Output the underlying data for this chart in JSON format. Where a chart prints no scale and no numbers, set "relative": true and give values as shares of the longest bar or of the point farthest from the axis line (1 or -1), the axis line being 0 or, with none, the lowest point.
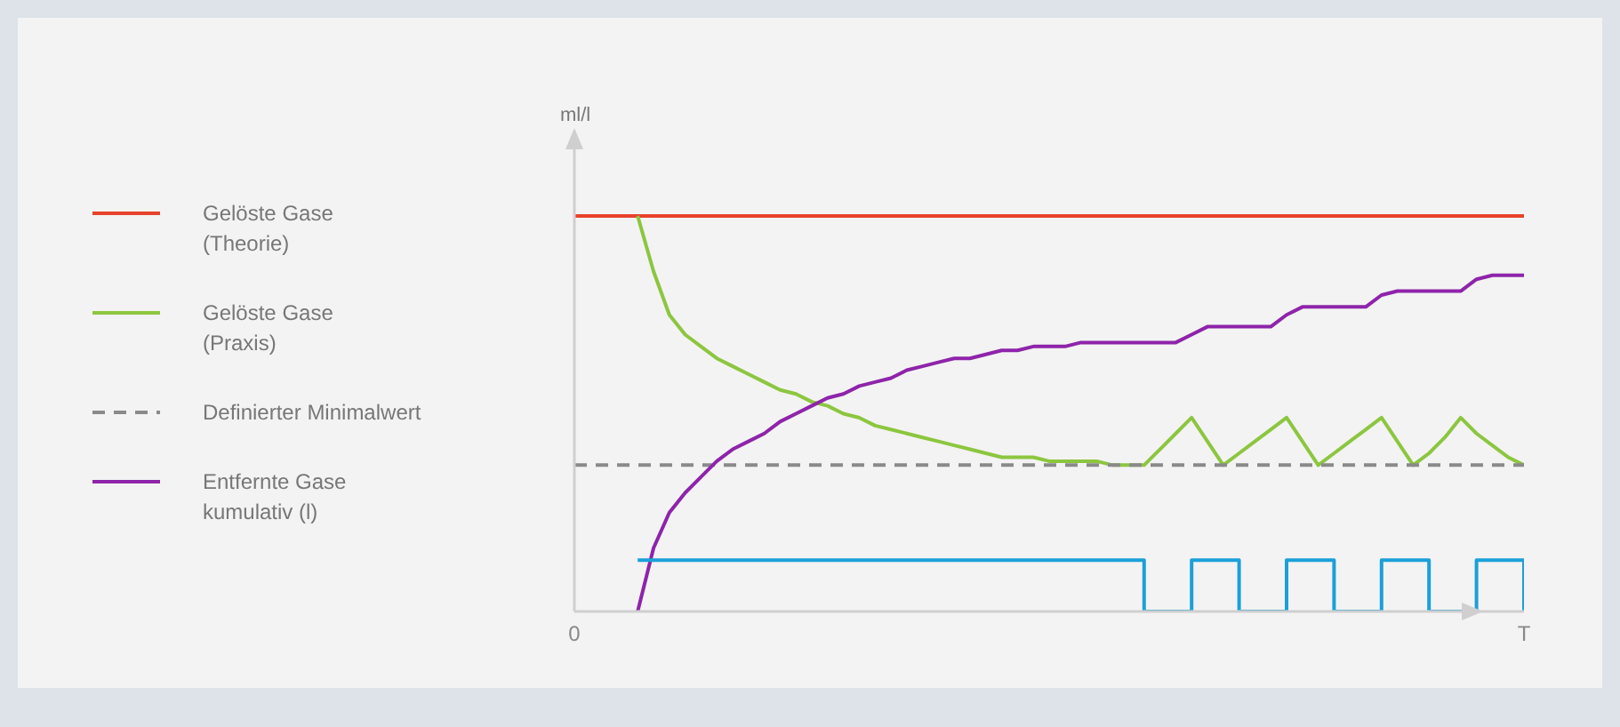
{
  "chart_data": {
    "type": "line",
    "relative": true,
    "ylabel": "ml/l",
    "legend": "left",
    "grid": false,
    "categories": [
      "0",
      null,
      null,
      null,
      null,
      null,
      null,
      null,
      null,
      null,
      null,
      null,
      null,
      null,
      null,
      null,
      null,
      null,
      null,
      null,
      null,
      null,
      null,
      null,
      null,
      null,
      null,
      null,
      null,
      null,
      null,
      null,
      null,
      null,
      null,
      null,
      null,
      null,
      null,
      null,
      null,
      null,
      null,
      null,
      null,
      null,
      null,
      null,
      null,
      null,
      null,
      null,
      null,
      null,
      null,
      null,
      null,
      null,
      null,
      null,
      "T"
    ],
    "series": [
      {
        "name": "Gelöste Gase\n(Theorie)",
        "color": "#e8412c",
        "values": [
          1,
          1,
          1,
          1,
          1,
          1,
          1,
          1,
          1,
          1,
          1,
          1,
          1,
          1,
          1,
          1,
          1,
          1,
          1,
          1,
          1,
          1,
          1,
          1,
          1,
          1,
          1,
          1,
          1,
          1,
          1,
          1,
          1,
          1,
          1,
          1,
          1,
          1,
          1,
          1,
          1,
          1,
          1,
          1,
          1,
          1,
          1,
          1,
          1,
          1,
          1,
          1,
          1,
          1,
          1,
          1,
          1,
          1,
          1,
          1,
          1
        ]
      },
      {
        "name": "Gelöste Gase\n(Praxis)",
        "color": "#8cc63f",
        "values": [
          null,
          null,
          null,
          null,
          1,
          0.86,
          0.75,
          0.7,
          0.67,
          0.64,
          0.62,
          0.6,
          0.58,
          0.56,
          0.55,
          0.53,
          0.52,
          0.5,
          0.49,
          0.47,
          0.46,
          0.45,
          0.44,
          0.43,
          0.42,
          0.41,
          0.4,
          0.39,
          0.39,
          0.39,
          0.38,
          0.38,
          0.38,
          0.38,
          0.37,
          0.37,
          0.37,
          0.41,
          0.45,
          0.49,
          0.43,
          0.37,
          0.4,
          0.43,
          0.46,
          0.49,
          0.43,
          0.37,
          0.4,
          0.43,
          0.46,
          0.49,
          0.43,
          0.37,
          0.4,
          0.44,
          0.49,
          0.45,
          0.42,
          0.39,
          0.37
        ]
      },
      {
        "name": "Definierter Minimalwert",
        "color": "#8a8a8a",
        "line_style": "dashed",
        "values": [
          0.37,
          0.37,
          0.37,
          0.37,
          0.37,
          0.37,
          0.37,
          0.37,
          0.37,
          0.37,
          0.37,
          0.37,
          0.37,
          0.37,
          0.37,
          0.37,
          0.37,
          0.37,
          0.37,
          0.37,
          0.37,
          0.37,
          0.37,
          0.37,
          0.37,
          0.37,
          0.37,
          0.37,
          0.37,
          0.37,
          0.37,
          0.37,
          0.37,
          0.37,
          0.37,
          0.37,
          0.37,
          0.37,
          0.37,
          0.37,
          0.37,
          0.37,
          0.37,
          0.37,
          0.37,
          0.37,
          0.37,
          0.37,
          0.37,
          0.37,
          0.37,
          0.37,
          0.37,
          0.37,
          0.37,
          0.37,
          0.37,
          0.37,
          0.37,
          0.37,
          0.37
        ]
      },
      {
        "name": "Entfernte Gase\nkumulativ (l)",
        "color": "#8e24aa",
        "values": [
          null,
          null,
          null,
          null,
          0,
          0.16,
          0.25,
          0.3,
          0.34,
          0.38,
          0.41,
          0.43,
          0.45,
          0.48,
          0.5,
          0.52,
          0.54,
          0.55,
          0.57,
          0.58,
          0.59,
          0.61,
          0.62,
          0.63,
          0.64,
          0.64,
          0.65,
          0.66,
          0.66,
          0.67,
          0.67,
          0.67,
          0.68,
          0.68,
          0.68,
          0.68,
          0.68,
          0.68,
          0.68,
          0.7,
          0.72,
          0.72,
          0.72,
          0.72,
          0.72,
          0.75,
          0.77,
          0.77,
          0.77,
          0.77,
          0.77,
          0.8,
          0.81,
          0.81,
          0.81,
          0.81,
          0.81,
          0.84,
          0.85,
          0.85,
          0.85
        ]
      },
      {
        "type": "step",
        "color": "#1ba0d8",
        "values": [
          null,
          null,
          null,
          null,
          0.13,
          0.13,
          0.13,
          0.13,
          0.13,
          0.13,
          0.13,
          0.13,
          0.13,
          0.13,
          0.13,
          0.13,
          0.13,
          0.13,
          0.13,
          0.13,
          0.13,
          0.13,
          0.13,
          0.13,
          0.13,
          0.13,
          0.13,
          0.13,
          0.13,
          0.13,
          0.13,
          0.13,
          0.13,
          0.13,
          0.13,
          0.13,
          0,
          0,
          0,
          0.13,
          0.13,
          0.13,
          0,
          0,
          0,
          0.13,
          0.13,
          0.13,
          0,
          0,
          0,
          0.13,
          0.13,
          0.13,
          0,
          0,
          0,
          0.13,
          0.13,
          0.13,
          0
        ]
      }
    ]
  }
}
